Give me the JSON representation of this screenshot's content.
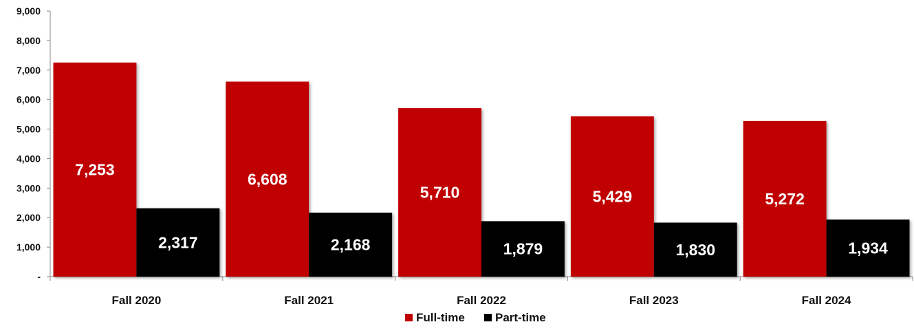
{
  "chart_data": {
    "type": "bar",
    "categories": [
      "Fall 2020",
      "Fall 2021",
      "Fall 2022",
      "Fall 2023",
      "Fall 2024"
    ],
    "series": [
      {
        "name": "Full-time",
        "values": [
          7253,
          6608,
          5710,
          5429,
          5272
        ],
        "color": "#c00000"
      },
      {
        "name": "Part-time",
        "values": [
          2317,
          2168,
          1879,
          1830,
          1934
        ],
        "color": "#000000"
      }
    ],
    "data_labels": [
      [
        "7,253",
        "6,608",
        "5,710",
        "5,429",
        "5,272"
      ],
      [
        "2,317",
        "2,168",
        "1,879",
        "1,830",
        "1,934"
      ]
    ],
    "ylim": [
      0,
      9000
    ],
    "y_ticks": [
      0,
      1000,
      2000,
      3000,
      4000,
      5000,
      6000,
      7000,
      8000,
      9000
    ],
    "y_tick_labels": [
      "-",
      "1,000",
      "2,000",
      "3,000",
      "4,000",
      "5,000",
      "6,000",
      "7,000",
      "8,000",
      "9,000"
    ],
    "legend_position": "bottom-center",
    "grid": false,
    "title": "",
    "xlabel": "",
    "ylabel": ""
  }
}
